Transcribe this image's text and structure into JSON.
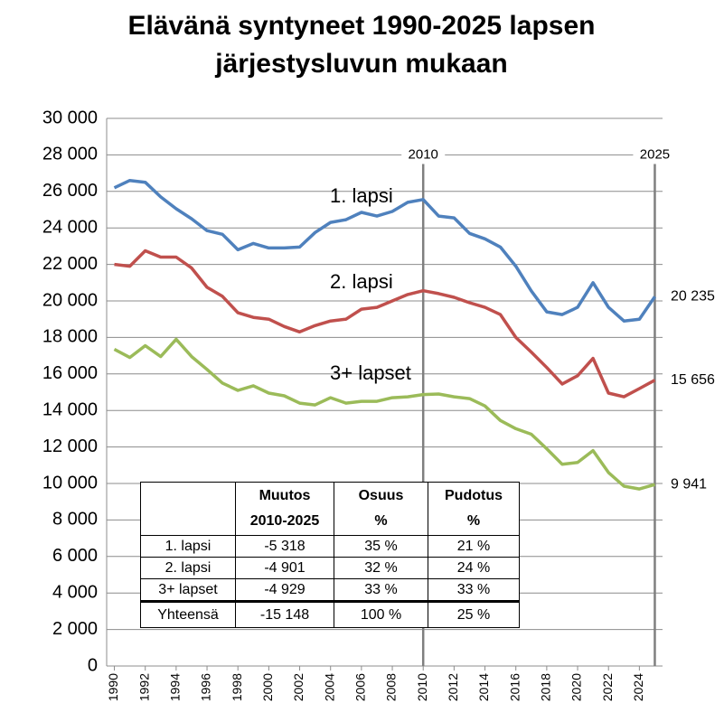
{
  "chart_data": {
    "type": "line",
    "title": [
      "Elävänä syntyneet 1990-2025 lapsen",
      "järjestysluvun mukaan"
    ],
    "x": [
      1990,
      1991,
      1992,
      1993,
      1994,
      1995,
      1996,
      1997,
      1998,
      1999,
      2000,
      2001,
      2002,
      2003,
      2004,
      2005,
      2006,
      2007,
      2008,
      2009,
      2010,
      2011,
      2012,
      2013,
      2014,
      2015,
      2016,
      2017,
      2018,
      2019,
      2020,
      2021,
      2022,
      2023,
      2024,
      2025
    ],
    "series": [
      {
        "name": "1. lapsi",
        "color": "#4f81bd",
        "values": [
          26200,
          26600,
          26500,
          25700,
          25050,
          24500,
          23850,
          23650,
          22800,
          23150,
          22900,
          22900,
          22950,
          23750,
          24300,
          24450,
          24850,
          24650,
          24900,
          25400,
          25553,
          24650,
          24550,
          23700,
          23400,
          22950,
          21900,
          20550,
          19400,
          19250,
          19650,
          21000,
          19650,
          18900,
          19000,
          20235
        ],
        "end_label": "20 235"
      },
      {
        "name": "2. lapsi",
        "color": "#c0504d",
        "values": [
          22000,
          21900,
          22750,
          22400,
          22400,
          21800,
          20750,
          20250,
          19350,
          19100,
          19000,
          18600,
          18300,
          18650,
          18900,
          19000,
          19550,
          19650,
          20000,
          20350,
          20557,
          20400,
          20200,
          19900,
          19650,
          19250,
          18000,
          17200,
          16350,
          15450,
          15900,
          16850,
          14950,
          14750,
          15200,
          15656
        ],
        "end_label": "15 656"
      },
      {
        "name": "3+ lapset",
        "color": "#9bbb59",
        "values": [
          17350,
          16900,
          17550,
          16950,
          17900,
          16950,
          16250,
          15500,
          15100,
          15350,
          14950,
          14800,
          14400,
          14300,
          14700,
          14400,
          14500,
          14500,
          14700,
          14750,
          14870,
          14900,
          14750,
          14650,
          14250,
          13450,
          13000,
          12700,
          11900,
          11050,
          11150,
          11800,
          10600,
          9850,
          9700,
          9941
        ],
        "end_label": "9 941"
      }
    ],
    "xlim": [
      1989.5,
      2025.5
    ],
    "xticks": [
      1990,
      1992,
      1994,
      1996,
      1998,
      2000,
      2002,
      2004,
      2006,
      2008,
      2010,
      2012,
      2014,
      2016,
      2018,
      2020,
      2022,
      2024
    ],
    "ylim": [
      0,
      30000
    ],
    "yticks": [
      0,
      {
        "value": 2000,
        "label": "2 000"
      },
      {
        "value": 4000,
        "label": "4 000"
      },
      {
        "value": 6000,
        "label": "6 000"
      },
      {
        "value": 8000,
        "label": "8 000"
      },
      {
        "value": 10000,
        "label": "10 000"
      },
      {
        "value": 12000,
        "label": "12 000"
      },
      {
        "value": 14000,
        "label": "14 000"
      },
      {
        "value": 16000,
        "label": "16 000"
      },
      {
        "value": 18000,
        "label": "18 000"
      },
      {
        "value": 20000,
        "label": "20 000"
      },
      {
        "value": 22000,
        "label": "22 000"
      },
      {
        "value": 24000,
        "label": "24 000"
      },
      {
        "value": 26000,
        "label": "26 000"
      },
      {
        "value": 28000,
        "label": "28 000"
      },
      {
        "value": 30000,
        "label": "30 000"
      }
    ],
    "grid": true,
    "markers": [
      {
        "x": 2010,
        "label": "2010"
      },
      {
        "x": 2025,
        "label": "2025"
      }
    ],
    "table": {
      "columns": [
        [
          "Muutos",
          "2010-2025"
        ],
        [
          "Osuus",
          "%"
        ],
        [
          "Pudotus",
          "%"
        ]
      ],
      "rows": [
        [
          "1. lapsi",
          "-5 318",
          "35 %",
          "21 %"
        ],
        [
          "2. lapsi",
          "-4 901",
          "32 %",
          "24 %"
        ],
        [
          "3+ lapset",
          "-4 929",
          "33 %",
          "33 %"
        ]
      ],
      "total": [
        "Yhteensä",
        "-15 148",
        "100 %",
        "25 %"
      ]
    }
  }
}
